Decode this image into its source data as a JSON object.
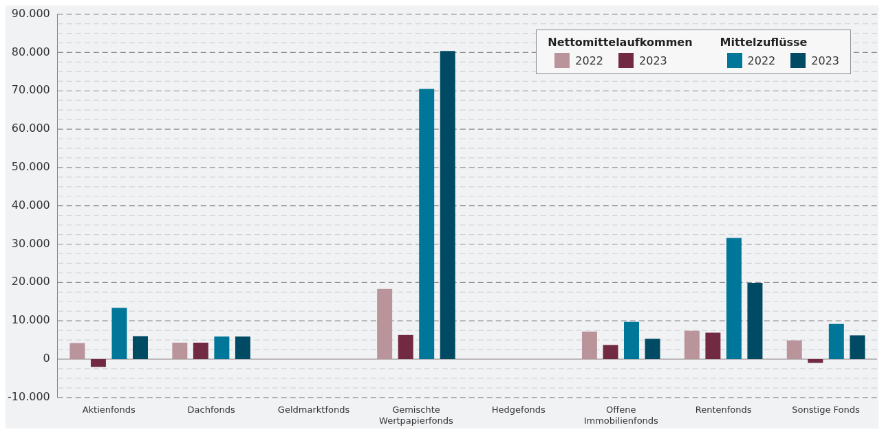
{
  "chart_data": {
    "type": "bar",
    "categories": [
      "Aktienfonds",
      "Dachfonds",
      "Geldmarktfonds",
      "Gemischte Wertpapierfonds",
      "Hedgefonds",
      "Offene Immobilienfonds",
      "Rentenfonds",
      "Sonstige Fonds"
    ],
    "series": [
      {
        "name": "2022",
        "color": "#b9959b",
        "values": [
          4200,
          4300,
          0,
          18300,
          0,
          7200,
          7400,
          4900
        ]
      },
      {
        "name": "2023",
        "color": "#722a43",
        "values": [
          -2000,
          4300,
          0,
          6300,
          0,
          3700,
          6900,
          -1000
        ]
      },
      {
        "name": "2022",
        "color": "#007699",
        "values": [
          13400,
          5900,
          0,
          70500,
          0,
          9700,
          31600,
          9200
        ]
      },
      {
        "name": "2023",
        "color": "#004b63",
        "values": [
          6000,
          5900,
          0,
          80400,
          0,
          5300,
          19900,
          6200
        ]
      }
    ],
    "legend_title": [
      "Nettomittelaufkommen",
      "Mittelzuflüsse"
    ],
    "legend": "top right",
    "grid": "y",
    "ylim": [
      -10000,
      90000
    ],
    "yticks": [
      {
        "value": -10000,
        "label": "-10.000"
      },
      {
        "value": -7500,
        "label": null
      },
      {
        "value": -5000,
        "label": null
      },
      {
        "value": -2500,
        "label": null
      },
      0,
      {
        "value": 2500,
        "label": null
      },
      {
        "value": 5000,
        "label": null
      },
      {
        "value": 7500,
        "label": null
      },
      {
        "value": 10000,
        "label": "10.000"
      },
      {
        "value": 12500,
        "label": null
      },
      {
        "value": 15000,
        "label": null
      },
      {
        "value": 17500,
        "label": null
      },
      {
        "value": 20000,
        "label": "20.000"
      },
      {
        "value": 22500,
        "label": null
      },
      {
        "value": 25000,
        "label": null
      },
      {
        "value": 27500,
        "label": null
      },
      {
        "value": 30000,
        "label": "30.000"
      },
      {
        "value": 32500,
        "label": null
      },
      {
        "value": 35000,
        "label": null
      },
      {
        "value": 37500,
        "label": null
      },
      {
        "value": 40000,
        "label": "40.000"
      },
      {
        "value": 42500,
        "label": null
      },
      {
        "value": 45000,
        "label": null
      },
      {
        "value": 47500,
        "label": null
      },
      {
        "value": 50000,
        "label": "50.000"
      },
      {
        "value": 52500,
        "label": null
      },
      {
        "value": 55000,
        "label": null
      },
      {
        "value": 57500,
        "label": null
      },
      {
        "value": 60000,
        "label": "60.000"
      },
      {
        "value": 62500,
        "label": null
      },
      {
        "value": 65000,
        "label": null
      },
      {
        "value": 67500,
        "label": null
      },
      {
        "value": 70000,
        "label": "70.000"
      },
      {
        "value": 72500,
        "label": null
      },
      {
        "value": 75000,
        "label": null
      },
      {
        "value": 77500,
        "label": null
      },
      {
        "value": 80000,
        "label": "80.000"
      },
      {
        "value": 82500,
        "label": null
      },
      {
        "value": 85000,
        "label": null
      },
      {
        "value": 87500,
        "label": null
      },
      {
        "value": 90000,
        "label": "90.000"
      }
    ]
  }
}
